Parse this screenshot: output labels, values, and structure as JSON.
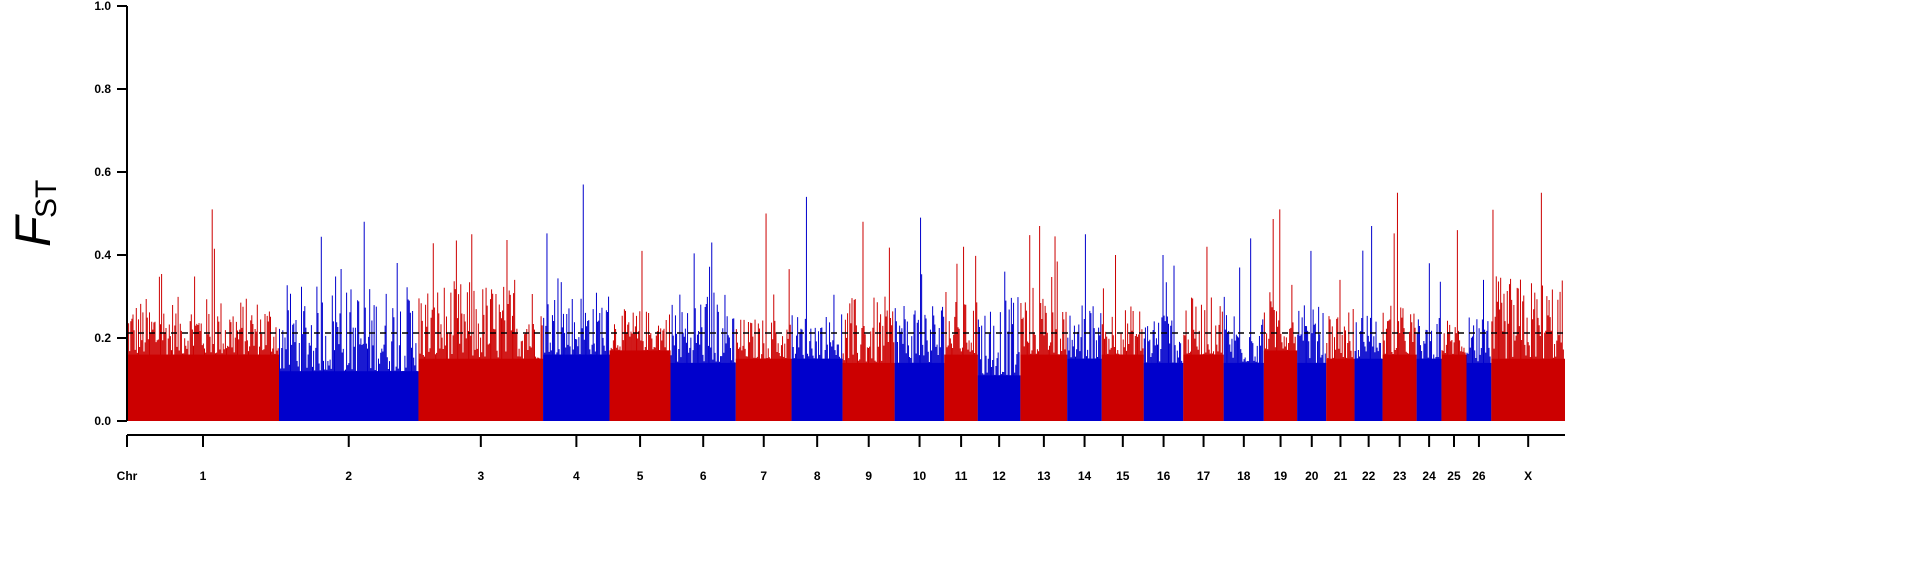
{
  "chart_data": {
    "type": "bar",
    "title": "",
    "xlabel": "Chr",
    "ylabel": {
      "main": "F",
      "subscript": "ST"
    },
    "ylim": [
      0,
      1.0
    ],
    "yticks": [
      "0.0",
      "0.2",
      "0.4",
      "0.6",
      "0.8",
      "1.0"
    ],
    "threshold": 0.212,
    "grid": false,
    "legend": "none",
    "colors": {
      "red": "#cc0000",
      "blue": "#0000cc",
      "axis": "#000000",
      "threshold": "#000000"
    },
    "chromosomes": [
      {
        "label": "1",
        "start": 0.0,
        "end": 0.1057,
        "color": "red",
        "base": 0.16,
        "upper": 0.3,
        "peak": 0.51
      },
      {
        "label": "2",
        "start": 0.1057,
        "end": 0.2027,
        "color": "blue",
        "base": 0.12,
        "upper": 0.33,
        "peak": 0.48
      },
      {
        "label": "3",
        "start": 0.2027,
        "end": 0.2894,
        "color": "red",
        "base": 0.15,
        "upper": 0.34,
        "peak": 0.45
      },
      {
        "label": "4",
        "start": 0.2894,
        "end": 0.3356,
        "color": "blue",
        "base": 0.16,
        "upper": 0.32,
        "peak": 0.57
      },
      {
        "label": "5",
        "start": 0.3356,
        "end": 0.378,
        "color": "red",
        "base": 0.17,
        "upper": 0.27,
        "peak": 0.41
      },
      {
        "label": "6",
        "start": 0.378,
        "end": 0.4234,
        "color": "blue",
        "base": 0.14,
        "upper": 0.32,
        "peak": 0.43
      },
      {
        "label": "7",
        "start": 0.4234,
        "end": 0.4622,
        "color": "red",
        "base": 0.15,
        "upper": 0.25,
        "peak": 0.5
      },
      {
        "label": "8",
        "start": 0.4622,
        "end": 0.4977,
        "color": "blue",
        "base": 0.15,
        "upper": 0.26,
        "peak": 0.54
      },
      {
        "label": "9",
        "start": 0.4977,
        "end": 0.5339,
        "color": "red",
        "base": 0.14,
        "upper": 0.3,
        "peak": 0.48
      },
      {
        "label": "10",
        "start": 0.5339,
        "end": 0.5684,
        "color": "blue",
        "base": 0.14,
        "upper": 0.3,
        "peak": 0.49
      },
      {
        "label": "11",
        "start": 0.5684,
        "end": 0.5917,
        "color": "red",
        "base": 0.16,
        "upper": 0.29,
        "peak": 0.42
      },
      {
        "label": "12",
        "start": 0.5917,
        "end": 0.6213,
        "color": "blue",
        "base": 0.11,
        "upper": 0.3,
        "peak": 0.36
      },
      {
        "label": "13",
        "start": 0.6213,
        "end": 0.6539,
        "color": "red",
        "base": 0.16,
        "upper": 0.33,
        "peak": 0.47
      },
      {
        "label": "14",
        "start": 0.6539,
        "end": 0.6779,
        "color": "blue",
        "base": 0.15,
        "upper": 0.29,
        "peak": 0.45
      },
      {
        "label": "15",
        "start": 0.6779,
        "end": 0.7071,
        "color": "red",
        "base": 0.16,
        "upper": 0.28,
        "peak": 0.4
      },
      {
        "label": "16",
        "start": 0.7071,
        "end": 0.7346,
        "color": "blue",
        "base": 0.14,
        "upper": 0.28,
        "peak": 0.4
      },
      {
        "label": "17",
        "start": 0.7346,
        "end": 0.7627,
        "color": "red",
        "base": 0.16,
        "upper": 0.3,
        "peak": 0.42
      },
      {
        "label": "18",
        "start": 0.7627,
        "end": 0.7906,
        "color": "blue",
        "base": 0.14,
        "upper": 0.28,
        "peak": 0.44
      },
      {
        "label": "19",
        "start": 0.7906,
        "end": 0.8138,
        "color": "red",
        "base": 0.17,
        "upper": 0.32,
        "peak": 0.51
      },
      {
        "label": "20",
        "start": 0.8138,
        "end": 0.834,
        "color": "blue",
        "base": 0.14,
        "upper": 0.28,
        "peak": 0.41
      },
      {
        "label": "21",
        "start": 0.834,
        "end": 0.8537,
        "color": "red",
        "base": 0.15,
        "upper": 0.28,
        "peak": 0.34
      },
      {
        "label": "22",
        "start": 0.8537,
        "end": 0.8732,
        "color": "blue",
        "base": 0.15,
        "upper": 0.26,
        "peak": 0.47
      },
      {
        "label": "23",
        "start": 0.8732,
        "end": 0.8969,
        "color": "red",
        "base": 0.16,
        "upper": 0.28,
        "peak": 0.55
      },
      {
        "label": "24",
        "start": 0.8969,
        "end": 0.9141,
        "color": "blue",
        "base": 0.15,
        "upper": 0.25,
        "peak": 0.38
      },
      {
        "label": "25",
        "start": 0.9141,
        "end": 0.9315,
        "color": "red",
        "base": 0.16,
        "upper": 0.25,
        "peak": 0.46
      },
      {
        "label": "26",
        "start": 0.9315,
        "end": 0.9488,
        "color": "blue",
        "base": 0.14,
        "upper": 0.25,
        "peak": 0.34
      },
      {
        "label": "X",
        "start": 0.9488,
        "end": 1.0,
        "color": "red",
        "base": 0.15,
        "upper": 0.35,
        "peak": 0.55
      }
    ]
  }
}
